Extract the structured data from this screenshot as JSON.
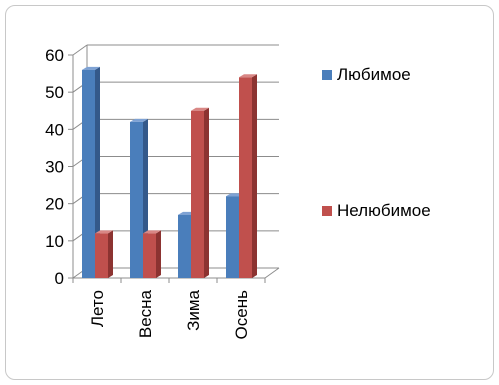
{
  "chart_data": {
    "type": "bar",
    "style": "3d-clustered-column",
    "categories": [
      "Лето",
      "Весна",
      "Зима",
      "Осень"
    ],
    "series": [
      {
        "name": "Любимое",
        "values": [
          56,
          42,
          17,
          22
        ],
        "color": "#4a7ebb",
        "shade": "#34598a",
        "top": "#7ea2d4"
      },
      {
        "name": "Нелюбимое",
        "values": [
          12,
          12,
          45,
          54
        ],
        "color": "#c0504d",
        "shade": "#8c3331",
        "top": "#d98785"
      }
    ],
    "ylim": [
      0,
      60
    ],
    "yticks": [
      "0",
      "10",
      "20",
      "30",
      "40",
      "50",
      "60"
    ],
    "grid": true,
    "legend_position": "right"
  }
}
